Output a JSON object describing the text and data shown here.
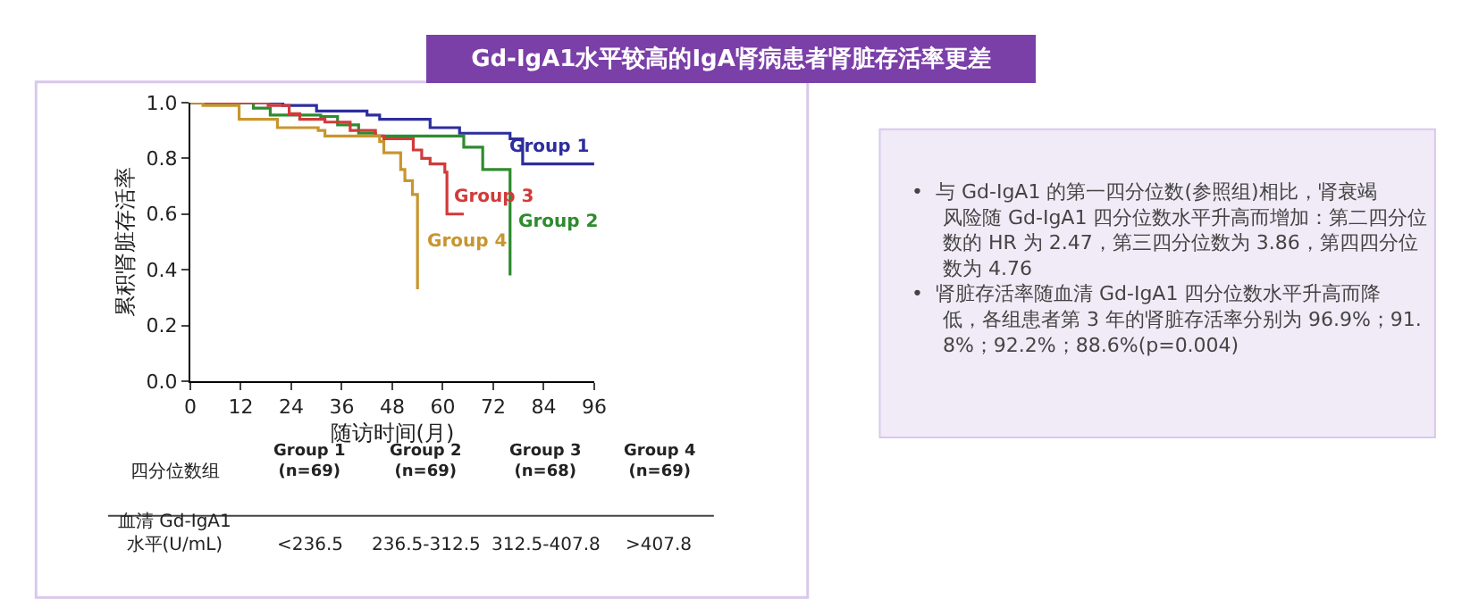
{
  "chart_data": [
    {
      "type": "step",
      "title": "Gd-IgA1水平较高的IgA肾病患者肾脏存活率更差",
      "xlabel": "随访时间(月)",
      "ylabel": "累积肾脏存活率",
      "xlim": [
        0,
        96
      ],
      "xticks": [
        0,
        12,
        24,
        36,
        48,
        60,
        72,
        84,
        96
      ],
      "ylim": [
        0,
        1.0
      ],
      "yticks": [
        {
          "value": 0,
          "label": "0.0"
        },
        {
          "value": 0.2,
          "label": "0.2"
        },
        {
          "value": 0.4,
          "label": "0.4"
        },
        {
          "value": 0.6,
          "label": "0.6"
        },
        {
          "value": 0.8,
          "label": "0.8"
        },
        {
          "value": 1.0,
          "label": "1.0"
        }
      ],
      "legend": false,
      "series": [
        {
          "name": "Group 1",
          "color": "#2e2e9e",
          "x": [
            0,
            22,
            30,
            42,
            45,
            57,
            64,
            76,
            79,
            96
          ],
          "values": [
            1.0,
            0.99,
            0.97,
            0.955,
            0.94,
            0.91,
            0.89,
            0.87,
            0.78,
            0.78
          ]
        },
        {
          "name": "Group 2",
          "color": "#2e8b2e",
          "x": [
            0,
            15,
            19,
            31,
            35,
            40,
            44,
            65,
            69.5,
            76
          ],
          "values": [
            1.0,
            0.98,
            0.955,
            0.95,
            0.92,
            0.89,
            0.88,
            0.84,
            0.76,
            0.38
          ]
        },
        {
          "name": "Group 3",
          "color": "#d23a3a",
          "x": [
            0,
            18.5,
            23.5,
            26,
            32,
            38,
            44,
            46,
            53,
            55,
            57,
            60.5,
            61,
            65
          ],
          "values": [
            1.0,
            0.99,
            0.96,
            0.94,
            0.93,
            0.9,
            0.88,
            0.87,
            0.83,
            0.8,
            0.78,
            0.75,
            0.6,
            0.6
          ]
        },
        {
          "name": "Group 4",
          "color": "#c8962e",
          "x": [
            0,
            3,
            11.6,
            20.7,
            30.4,
            32,
            45,
            46,
            50,
            51,
            52.8,
            54
          ],
          "values": [
            1.0,
            0.99,
            0.94,
            0.91,
            0.9,
            0.88,
            0.86,
            0.82,
            0.76,
            0.72,
            0.67,
            0.33
          ]
        }
      ],
      "annotations": [
        "四分位数组",
        "Group 1\n(n=69)",
        "Group 2\n(n=69)",
        "Group 3\n(n=68)",
        "Group 4\n(n=69)",
        "血清 Gd-IgA1\n水平(U/mL)",
        "<236.5",
        "236.5-312.5",
        "312.5-407.8",
        ">407.8"
      ]
    },
    {
      "type": "other",
      "annotations": [
        "•  与 Gd-IgA1 的第一四分位数(参照组)相比，肾衰竭风险随 Gd-IgA1 四分位数水平升高而增加：第二四分位数的 HR 为 2.47，第三四分位数为 3.86，第四四分位数为 4.76",
        "•  肾脏存活率随血清 Gd-IgA1 四分位数水平升高而降低，各组患者第 3 年的肾脏存活率分别为 96.9%；91.8%；92.2%；88.6%(p=0.004)"
      ]
    }
  ]
}
